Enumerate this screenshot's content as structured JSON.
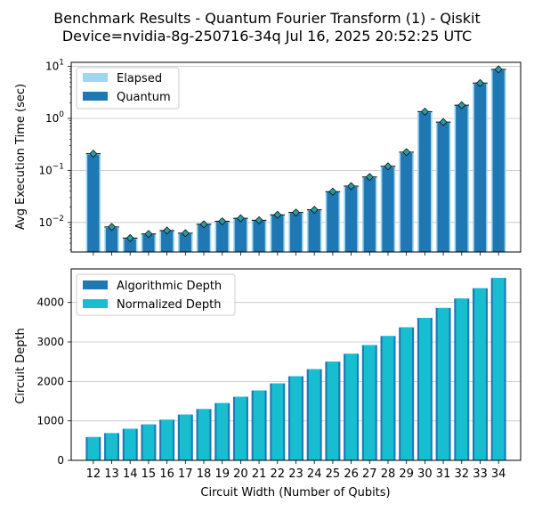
{
  "title_line1": "Benchmark Results - Quantum Fourier Transform (1) - Qiskit",
  "title_line2": "Device=nvidia-8g-250716-34q  Jul 16, 2025 20:52:25 UTC",
  "colors": {
    "elapsed": "#9fd6ee",
    "quantum": "#1f77b4",
    "algorithmic": "#1f77b4",
    "normalized": "#17becf",
    "grid": "#c0c0c0",
    "marker": "#2a9d9f"
  },
  "chart_data": [
    {
      "type": "bar",
      "ylabel": "Avg Execution Time (sec)",
      "yscale": "log",
      "ylim": [
        0.0027,
        12
      ],
      "yticks": [
        {
          "value": 0.01,
          "base": "10",
          "exp": "−2"
        },
        {
          "value": 0.1,
          "base": "10",
          "exp": "−1"
        },
        {
          "value": 1,
          "base": "10",
          "exp": "0"
        },
        {
          "value": 10,
          "base": "10",
          "exp": "1"
        }
      ],
      "grid": true,
      "legend_position": "top-left",
      "x": [
        12,
        13,
        14,
        15,
        16,
        17,
        18,
        19,
        20,
        21,
        22,
        23,
        24,
        25,
        26,
        27,
        28,
        29,
        30,
        31,
        32,
        33,
        34
      ],
      "series": [
        {
          "name": "Elapsed",
          "values": [
            0.21,
            0.0082,
            0.005,
            0.006,
            0.007,
            0.0062,
            0.0092,
            0.0105,
            0.012,
            0.011,
            0.014,
            0.0155,
            0.0175,
            0.039,
            0.05,
            0.075,
            0.12,
            0.225,
            1.35,
            0.85,
            1.8,
            4.8,
            8.8
          ]
        },
        {
          "name": "Quantum",
          "values": [
            0.2,
            0.0078,
            0.0048,
            0.0058,
            0.0068,
            0.006,
            0.009,
            0.0102,
            0.0117,
            0.0107,
            0.0136,
            0.015,
            0.017,
            0.038,
            0.048,
            0.072,
            0.115,
            0.215,
            1.3,
            0.82,
            1.75,
            4.6,
            8.5
          ]
        }
      ]
    },
    {
      "type": "bar",
      "xlabel": "Circuit Width (Number of Qubits)",
      "ylabel": "Circuit Depth",
      "ylim": [
        0,
        4850
      ],
      "yticks": [
        0,
        1000,
        2000,
        3000,
        4000
      ],
      "grid": true,
      "legend_position": "top-left",
      "x": [
        12,
        13,
        14,
        15,
        16,
        17,
        18,
        19,
        20,
        21,
        22,
        23,
        24,
        25,
        26,
        27,
        28,
        29,
        30,
        31,
        32,
        33,
        34
      ],
      "series": [
        {
          "name": "Algorithmic Depth",
          "values": [
            590,
            690,
            800,
            910,
            1030,
            1160,
            1300,
            1450,
            1610,
            1770,
            1950,
            2130,
            2310,
            2500,
            2700,
            2920,
            3150,
            3370,
            3610,
            3860,
            4100,
            4360,
            4620
          ]
        },
        {
          "name": "Normalized Depth",
          "values": [
            590,
            690,
            800,
            910,
            1030,
            1160,
            1300,
            1450,
            1610,
            1770,
            1950,
            2130,
            2310,
            2500,
            2700,
            2920,
            3150,
            3370,
            3610,
            3860,
            4100,
            4360,
            4620
          ]
        }
      ]
    }
  ]
}
